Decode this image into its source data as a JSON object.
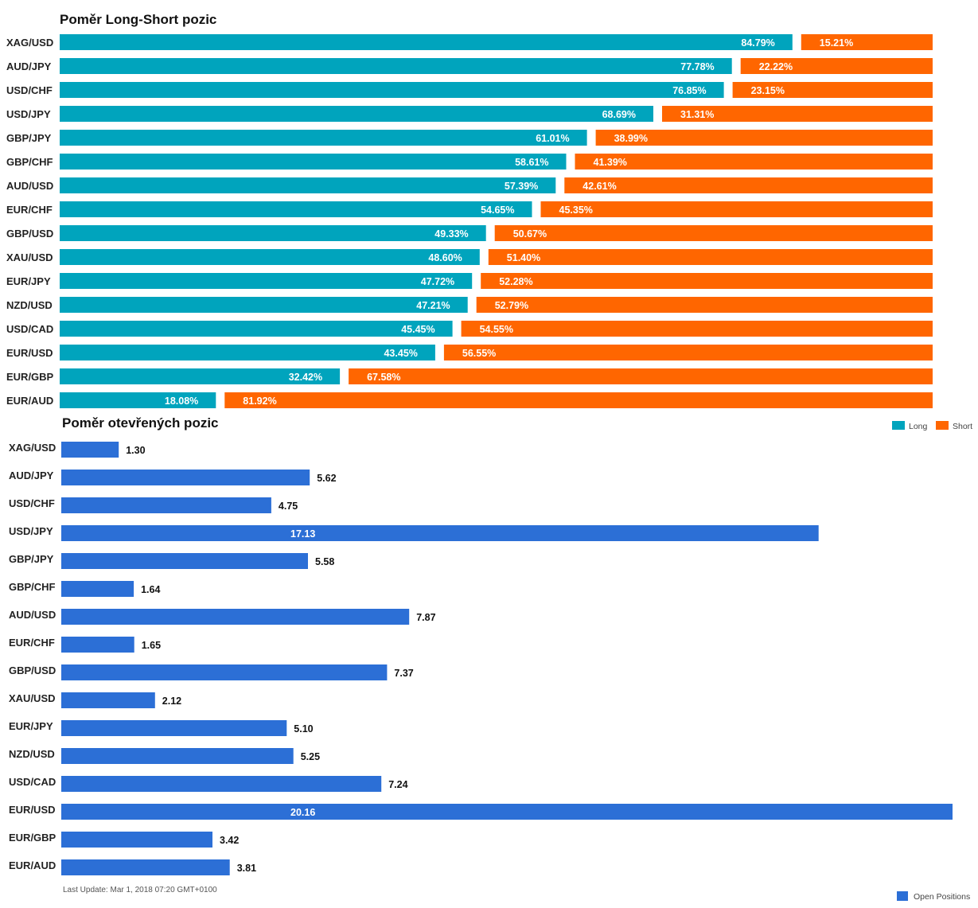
{
  "colors": {
    "long": "#00a4bd",
    "short": "#ff6600",
    "open": "#2c6fd6"
  },
  "chart_data": [
    {
      "type": "bar",
      "stacked": true,
      "orientation": "horizontal",
      "title": "Poměr Long-Short pozic",
      "categories": [
        "XAG/USD",
        "AUD/JPY",
        "USD/CHF",
        "USD/JPY",
        "GBP/JPY",
        "GBP/CHF",
        "AUD/USD",
        "EUR/CHF",
        "GBP/USD",
        "XAU/USD",
        "EUR/JPY",
        "NZD/USD",
        "USD/CAD",
        "EUR/USD",
        "EUR/GBP",
        "EUR/AUD"
      ],
      "series": [
        {
          "name": "Long",
          "values": [
            84.79,
            77.78,
            76.85,
            68.69,
            61.01,
            58.61,
            57.39,
            54.65,
            49.33,
            48.6,
            47.72,
            47.21,
            45.45,
            43.45,
            32.42,
            18.08
          ],
          "labels": [
            "84.79%",
            "77.78%",
            "76.85%",
            "68.69%",
            "61.01%",
            "58.61%",
            "57.39%",
            "54.65%",
            "49.33%",
            "48.60%",
            "47.72%",
            "47.21%",
            "45.45%",
            "43.45%",
            "32.42%",
            "18.08%"
          ]
        },
        {
          "name": "Short",
          "values": [
            15.21,
            22.22,
            23.15,
            31.31,
            38.99,
            41.39,
            42.61,
            45.35,
            50.67,
            51.4,
            52.28,
            52.79,
            54.55,
            56.55,
            67.58,
            81.92
          ],
          "labels": [
            "15.21%",
            "22.22%",
            "23.15%",
            "31.31%",
            "38.99%",
            "41.39%",
            "42.61%",
            "45.35%",
            "50.67%",
            "51.40%",
            "52.28%",
            "52.79%",
            "54.55%",
            "56.55%",
            "67.58%",
            "81.92%"
          ]
        }
      ],
      "legend": "bottom-right"
    },
    {
      "type": "bar",
      "orientation": "horizontal",
      "title": "Poměr otevřených pozic",
      "categories": [
        "XAG/USD",
        "AUD/JPY",
        "USD/CHF",
        "USD/JPY",
        "GBP/JPY",
        "GBP/CHF",
        "AUD/USD",
        "EUR/CHF",
        "GBP/USD",
        "XAU/USD",
        "EUR/JPY",
        "NZD/USD",
        "USD/CAD",
        "EUR/USD",
        "EUR/GBP",
        "EUR/AUD"
      ],
      "series": [
        {
          "name": "Open Positions",
          "values": [
            1.3,
            5.62,
            4.75,
            17.13,
            5.58,
            1.64,
            7.87,
            1.65,
            7.37,
            2.12,
            5.1,
            5.25,
            7.24,
            20.16,
            3.42,
            3.81
          ],
          "labels": [
            "1.30",
            "5.62",
            "4.75",
            "17.13",
            "5.58",
            "1.64",
            "7.87",
            "1.65",
            "7.37",
            "2.12",
            "5.10",
            "5.25",
            "7.24",
            "20.16",
            "3.42",
            "3.81"
          ]
        }
      ],
      "legend": "bottom-right",
      "footnote": "Last Update: Mar 1, 2018 07:20 GMT+0100"
    }
  ]
}
